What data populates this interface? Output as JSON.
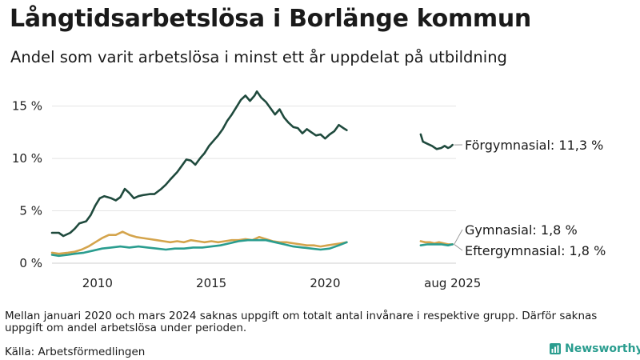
{
  "title": "Långtidsarbetslösa i Borlänge kommun",
  "subtitle": "Andel som varit arbetslösa i minst ett år uppdelat på utbildning",
  "note": "Mellan januari 2020 och mars 2024 saknas uppgift om totalt antal invånare i respektive grupp. Därför saknas uppgift om andel arbetslösa under perioden.",
  "source": "Källa: Arbetsförmedlingen",
  "brand": "Newsworthy",
  "chart_data": {
    "type": "line",
    "title": "Långtidsarbetslösa i Borlänge kommun",
    "x_ticks": [
      {
        "x": 2010,
        "label": "2010"
      },
      {
        "x": 2015,
        "label": "2015"
      },
      {
        "x": 2020,
        "label": "2020"
      },
      {
        "x": 2025.6,
        "label": "aug 2025"
      }
    ],
    "y_ticks": [
      {
        "y": 0,
        "label": "0 %"
      },
      {
        "y": 5,
        "label": "5 %"
      },
      {
        "y": 10,
        "label": "10 %"
      },
      {
        "y": 15,
        "label": "15 %"
      }
    ],
    "xlim": [
      2008.0,
      2025.75
    ],
    "ylim": [
      0,
      16.5
    ],
    "grid": true,
    "series": [
      {
        "name": "Förgymnasial",
        "end_label": "Förgymnasial: 11,3 %",
        "color": "#1f4a3d",
        "segments": [
          [
            [
              2008.0,
              2.9
            ],
            [
              2008.3,
              2.9
            ],
            [
              2008.5,
              2.6
            ],
            [
              2008.8,
              2.9
            ],
            [
              2009.0,
              3.3
            ],
            [
              2009.2,
              3.8
            ],
            [
              2009.5,
              4.0
            ],
            [
              2009.7,
              4.6
            ],
            [
              2009.9,
              5.5
            ],
            [
              2010.1,
              6.2
            ],
            [
              2010.3,
              6.4
            ],
            [
              2010.6,
              6.2
            ],
            [
              2010.8,
              6.0
            ],
            [
              2011.0,
              6.3
            ],
            [
              2011.2,
              7.1
            ],
            [
              2011.4,
              6.7
            ],
            [
              2011.6,
              6.2
            ],
            [
              2011.8,
              6.4
            ],
            [
              2012.0,
              6.5
            ],
            [
              2012.3,
              6.6
            ],
            [
              2012.5,
              6.6
            ],
            [
              2012.8,
              7.1
            ],
            [
              2013.0,
              7.5
            ],
            [
              2013.2,
              8.0
            ],
            [
              2013.5,
              8.7
            ],
            [
              2013.7,
              9.3
            ],
            [
              2013.9,
              9.9
            ],
            [
              2014.1,
              9.8
            ],
            [
              2014.3,
              9.4
            ],
            [
              2014.5,
              10.0
            ],
            [
              2014.7,
              10.5
            ],
            [
              2014.9,
              11.2
            ],
            [
              2015.1,
              11.7
            ],
            [
              2015.3,
              12.2
            ],
            [
              2015.5,
              12.8
            ],
            [
              2015.7,
              13.6
            ],
            [
              2015.9,
              14.2
            ],
            [
              2016.1,
              14.9
            ],
            [
              2016.3,
              15.6
            ],
            [
              2016.5,
              16.0
            ],
            [
              2016.7,
              15.5
            ],
            [
              2016.9,
              16.0
            ],
            [
              2017.0,
              16.4
            ],
            [
              2017.2,
              15.8
            ],
            [
              2017.4,
              15.4
            ],
            [
              2017.6,
              14.8
            ],
            [
              2017.8,
              14.2
            ],
            [
              2018.0,
              14.7
            ],
            [
              2018.2,
              13.9
            ],
            [
              2018.4,
              13.4
            ],
            [
              2018.6,
              13.0
            ],
            [
              2018.8,
              12.9
            ],
            [
              2019.0,
              12.4
            ],
            [
              2019.2,
              12.8
            ],
            [
              2019.4,
              12.5
            ],
            [
              2019.6,
              12.2
            ],
            [
              2019.8,
              12.3
            ],
            [
              2020.0,
              11.9
            ],
            [
              2020.2,
              12.3
            ],
            [
              2020.4,
              12.6
            ],
            [
              2020.6,
              13.2
            ],
            [
              2020.8,
              12.9
            ],
            [
              2020.95,
              12.7
            ]
          ],
          [
            [
              2024.2,
              12.3
            ],
            [
              2024.3,
              11.6
            ],
            [
              2024.5,
              11.4
            ],
            [
              2024.7,
              11.2
            ],
            [
              2024.9,
              10.9
            ],
            [
              2025.1,
              11.0
            ],
            [
              2025.25,
              11.2
            ],
            [
              2025.4,
              11.0
            ],
            [
              2025.5,
              11.1
            ],
            [
              2025.6,
              11.3
            ]
          ]
        ]
      },
      {
        "name": "Gymnasial",
        "end_label": "Gymnasial:  1,8 %",
        "color": "#d4a44c",
        "segments": [
          [
            [
              2008.0,
              1.0
            ],
            [
              2008.3,
              0.9
            ],
            [
              2008.7,
              1.0
            ],
            [
              2009.0,
              1.1
            ],
            [
              2009.3,
              1.3
            ],
            [
              2009.6,
              1.6
            ],
            [
              2009.9,
              2.0
            ],
            [
              2010.2,
              2.4
            ],
            [
              2010.5,
              2.7
            ],
            [
              2010.8,
              2.7
            ],
            [
              2011.1,
              3.0
            ],
            [
              2011.4,
              2.7
            ],
            [
              2011.7,
              2.5
            ],
            [
              2012.0,
              2.4
            ],
            [
              2012.3,
              2.3
            ],
            [
              2012.6,
              2.2
            ],
            [
              2012.9,
              2.1
            ],
            [
              2013.2,
              2.0
            ],
            [
              2013.5,
              2.1
            ],
            [
              2013.8,
              2.0
            ],
            [
              2014.1,
              2.2
            ],
            [
              2014.4,
              2.1
            ],
            [
              2014.7,
              2.0
            ],
            [
              2015.0,
              2.1
            ],
            [
              2015.3,
              2.0
            ],
            [
              2015.6,
              2.1
            ],
            [
              2015.9,
              2.2
            ],
            [
              2016.2,
              2.2
            ],
            [
              2016.5,
              2.3
            ],
            [
              2016.8,
              2.2
            ],
            [
              2017.1,
              2.5
            ],
            [
              2017.4,
              2.3
            ],
            [
              2017.7,
              2.1
            ],
            [
              2018.0,
              2.0
            ],
            [
              2018.3,
              2.0
            ],
            [
              2018.6,
              1.9
            ],
            [
              2018.9,
              1.8
            ],
            [
              2019.2,
              1.7
            ],
            [
              2019.5,
              1.7
            ],
            [
              2019.8,
              1.6
            ],
            [
              2020.1,
              1.7
            ],
            [
              2020.4,
              1.8
            ],
            [
              2020.7,
              1.9
            ],
            [
              2020.95,
              2.0
            ]
          ],
          [
            [
              2024.2,
              2.1
            ],
            [
              2024.4,
              2.0
            ],
            [
              2024.6,
              2.0
            ],
            [
              2024.8,
              1.9
            ],
            [
              2025.0,
              2.0
            ],
            [
              2025.2,
              1.9
            ],
            [
              2025.4,
              1.8
            ],
            [
              2025.6,
              1.8
            ]
          ]
        ]
      },
      {
        "name": "Eftergymnasial",
        "end_label": "Eftergymnasial:  1,8 %",
        "color": "#2a9d8f",
        "segments": [
          [
            [
              2008.0,
              0.8
            ],
            [
              2008.3,
              0.7
            ],
            [
              2008.7,
              0.8
            ],
            [
              2009.0,
              0.9
            ],
            [
              2009.4,
              1.0
            ],
            [
              2009.8,
              1.2
            ],
            [
              2010.2,
              1.4
            ],
            [
              2010.6,
              1.5
            ],
            [
              2011.0,
              1.6
            ],
            [
              2011.4,
              1.5
            ],
            [
              2011.8,
              1.6
            ],
            [
              2012.2,
              1.5
            ],
            [
              2012.6,
              1.4
            ],
            [
              2013.0,
              1.3
            ],
            [
              2013.4,
              1.4
            ],
            [
              2013.8,
              1.4
            ],
            [
              2014.2,
              1.5
            ],
            [
              2014.6,
              1.5
            ],
            [
              2015.0,
              1.6
            ],
            [
              2015.4,
              1.7
            ],
            [
              2015.8,
              1.9
            ],
            [
              2016.2,
              2.1
            ],
            [
              2016.6,
              2.2
            ],
            [
              2017.0,
              2.2
            ],
            [
              2017.4,
              2.2
            ],
            [
              2017.8,
              2.0
            ],
            [
              2018.2,
              1.8
            ],
            [
              2018.6,
              1.6
            ],
            [
              2019.0,
              1.5
            ],
            [
              2019.4,
              1.4
            ],
            [
              2019.8,
              1.3
            ],
            [
              2020.2,
              1.4
            ],
            [
              2020.6,
              1.7
            ],
            [
              2020.95,
              2.0
            ]
          ],
          [
            [
              2024.2,
              1.7
            ],
            [
              2024.5,
              1.8
            ],
            [
              2024.8,
              1.8
            ],
            [
              2025.1,
              1.8
            ],
            [
              2025.4,
              1.7
            ],
            [
              2025.6,
              1.8
            ]
          ]
        ]
      }
    ]
  }
}
